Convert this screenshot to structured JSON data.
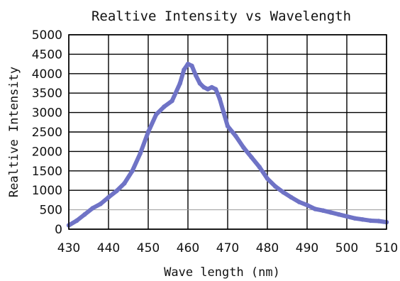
{
  "chart_data": {
    "type": "line",
    "title": "Realtive Intensity vs Wavelength",
    "xlabel": "Wave length (nm)",
    "ylabel": "Realtive Intensity",
    "xlim": [
      430,
      510
    ],
    "ylim": [
      0,
      5000
    ],
    "grid": true,
    "x_ticks": [
      "430",
      "440",
      "450",
      "460",
      "470",
      "480",
      "490",
      "500",
      "510"
    ],
    "y_ticks": [
      "5000",
      "4500",
      "4000",
      "3500",
      "3000",
      "2500",
      "2000",
      "1500",
      "1000",
      "500",
      "0"
    ],
    "series_color": "#6f73c6",
    "series": [
      {
        "x": [
          430,
          432,
          434,
          436,
          438,
          440,
          442,
          444,
          446,
          448,
          450,
          452,
          454,
          456,
          458,
          459,
          460,
          461,
          462,
          463,
          464,
          465,
          466,
          467,
          468,
          469,
          470,
          472,
          474,
          476,
          478,
          480,
          482,
          484,
          486,
          488,
          490,
          492,
          494,
          496,
          498,
          500,
          502,
          504,
          506,
          508,
          510
        ],
        "y": [
          100,
          220,
          380,
          540,
          650,
          820,
          980,
          1180,
          1500,
          1950,
          2500,
          2950,
          3150,
          3300,
          3750,
          4100,
          4250,
          4200,
          3950,
          3750,
          3650,
          3600,
          3650,
          3600,
          3350,
          3000,
          2650,
          2400,
          2100,
          1850,
          1600,
          1300,
          1100,
          950,
          820,
          700,
          620,
          520,
          480,
          430,
          380,
          330,
          280,
          250,
          220,
          210,
          180
        ]
      }
    ]
  }
}
